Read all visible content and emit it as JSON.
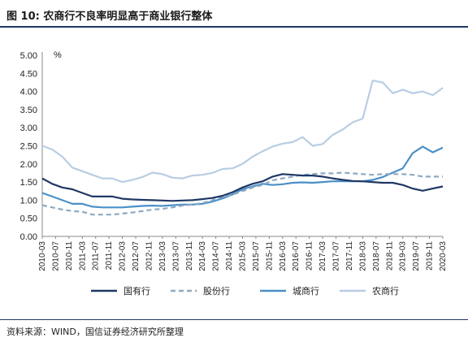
{
  "figure": {
    "title": "图 10:  农商行不良率明显高于商业银行整体",
    "source": "资料来源：WIND，国信证券经济研究所整理"
  },
  "chart_data": {
    "type": "line",
    "title": "",
    "xlabel": "",
    "ylabel": "",
    "unit_label": "%",
    "ylim": [
      0,
      5
    ],
    "yticks": [
      "5.00",
      "4.50",
      "4.00",
      "3.50",
      "3.00",
      "2.50",
      "2.00",
      "1.50",
      "1.00",
      "0.50",
      "0.00"
    ],
    "grid": false,
    "legend_position": "bottom",
    "x_tick_labels": [
      "2010-03",
      "2010-07",
      "2010-11",
      "2011-03",
      "2011-07",
      "2011-11",
      "2012-03",
      "2012-07",
      "2012-11",
      "2013-03",
      "2013-07",
      "2013-11",
      "2014-03",
      "2014-07",
      "2014-11",
      "2015-03",
      "2015-07",
      "2015-11",
      "2016-03",
      "2016-07",
      "2016-11",
      "2017-03",
      "2017-07",
      "2017-11",
      "2018-03",
      "2018-07",
      "2018-11",
      "2019-03",
      "2019-07",
      "2019-11",
      "2020-03"
    ],
    "x": [
      "2010-03",
      "2010-06",
      "2010-09",
      "2010-12",
      "2011-03",
      "2011-06",
      "2011-09",
      "2011-12",
      "2012-03",
      "2012-06",
      "2012-09",
      "2012-12",
      "2013-03",
      "2013-06",
      "2013-09",
      "2013-12",
      "2014-03",
      "2014-06",
      "2014-09",
      "2014-12",
      "2015-03",
      "2015-06",
      "2015-09",
      "2015-12",
      "2016-03",
      "2016-06",
      "2016-09",
      "2016-12",
      "2017-03",
      "2017-06",
      "2017-09",
      "2017-12",
      "2018-03",
      "2018-06",
      "2018-09",
      "2018-12",
      "2019-03",
      "2019-06",
      "2019-09",
      "2019-12",
      "2020-03"
    ],
    "series": [
      {
        "name": "国有行",
        "color": "#1f3864",
        "dash": "solid",
        "values": [
          1.6,
          1.45,
          1.35,
          1.3,
          1.2,
          1.1,
          1.1,
          1.1,
          1.04,
          1.02,
          1.01,
          1.0,
          0.99,
          0.98,
          0.99,
          1.0,
          1.03,
          1.06,
          1.12,
          1.22,
          1.35,
          1.45,
          1.52,
          1.65,
          1.72,
          1.7,
          1.68,
          1.68,
          1.65,
          1.6,
          1.56,
          1.53,
          1.52,
          1.5,
          1.48,
          1.48,
          1.42,
          1.32,
          1.26,
          1.32,
          1.38
        ]
      },
      {
        "name": "股份行",
        "color": "#8ea9c1",
        "dash": "dashed",
        "values": [
          0.86,
          0.8,
          0.74,
          0.7,
          0.68,
          0.6,
          0.6,
          0.6,
          0.63,
          0.66,
          0.7,
          0.74,
          0.76,
          0.8,
          0.85,
          0.88,
          0.92,
          1.0,
          1.1,
          1.15,
          1.25,
          1.35,
          1.42,
          1.55,
          1.6,
          1.65,
          1.7,
          1.72,
          1.74,
          1.74,
          1.76,
          1.74,
          1.72,
          1.7,
          1.72,
          1.72,
          1.72,
          1.7,
          1.65,
          1.65,
          1.65
        ]
      },
      {
        "name": "城商行",
        "color": "#4a90c8",
        "dash": "solid",
        "values": [
          1.2,
          1.1,
          1.0,
          0.9,
          0.9,
          0.82,
          0.8,
          0.8,
          0.8,
          0.82,
          0.84,
          0.85,
          0.84,
          0.86,
          0.88,
          0.88,
          0.9,
          0.96,
          1.05,
          1.16,
          1.3,
          1.38,
          1.45,
          1.42,
          1.44,
          1.48,
          1.49,
          1.48,
          1.5,
          1.52,
          1.52,
          1.52,
          1.52,
          1.56,
          1.64,
          1.76,
          1.88,
          2.3,
          2.48,
          2.32,
          2.45
        ]
      },
      {
        "name": "农商行",
        "color": "#b8cde3",
        "dash": "solid",
        "values": [
          2.5,
          2.4,
          2.2,
          1.9,
          1.8,
          1.7,
          1.6,
          1.6,
          1.5,
          1.56,
          1.64,
          1.76,
          1.72,
          1.62,
          1.6,
          1.68,
          1.7,
          1.75,
          1.86,
          1.88,
          2.0,
          2.2,
          2.35,
          2.48,
          2.56,
          2.6,
          2.74,
          2.5,
          2.55,
          2.8,
          2.95,
          3.15,
          3.25,
          4.3,
          4.25,
          3.95,
          4.05,
          3.95,
          4.0,
          3.9,
          4.1
        ]
      }
    ]
  }
}
